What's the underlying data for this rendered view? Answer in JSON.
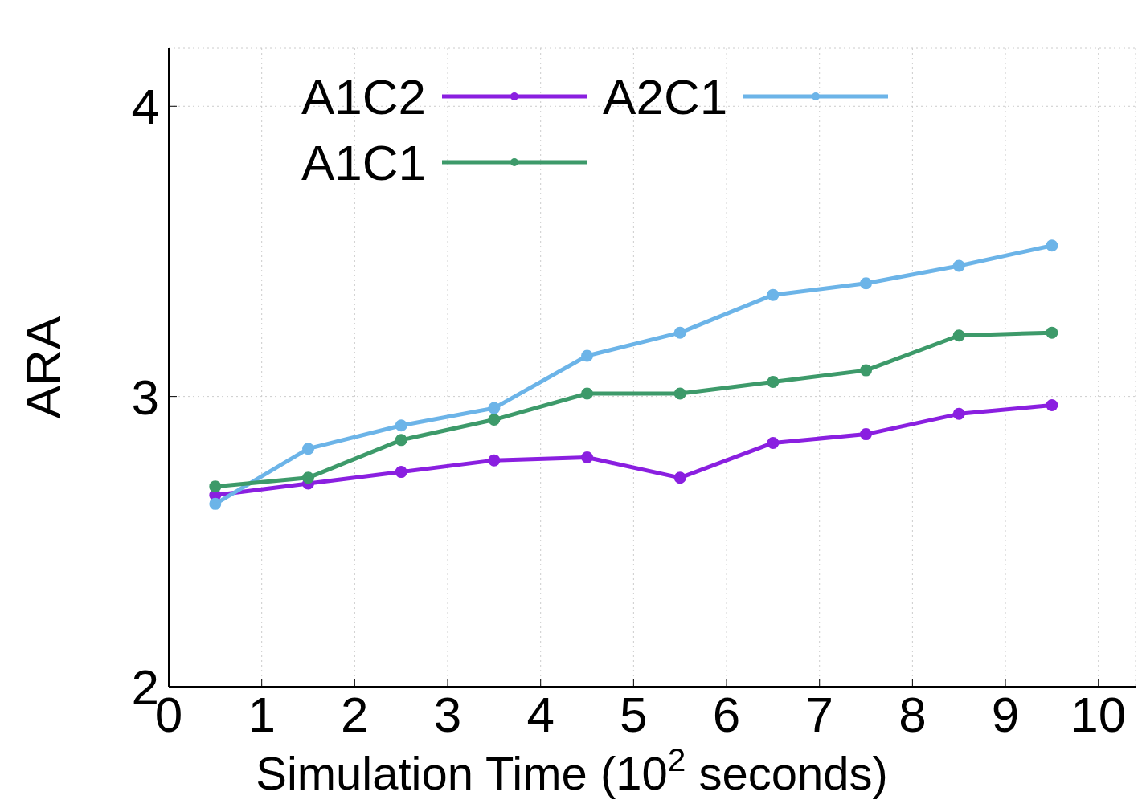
{
  "chart_data": {
    "type": "line",
    "xlabel": "Simulation Time (10$^{2}$ seconds)",
    "ylabel": "ARA",
    "x": [
      0.5,
      1.5,
      2.5,
      3.5,
      4.5,
      5.5,
      6.5,
      7.5,
      8.5,
      9.5
    ],
    "series": [
      {
        "name": "A1C2",
        "color": "#8a1fe0",
        "values": [
          2.66,
          2.7,
          2.74,
          2.78,
          2.79,
          2.72,
          2.84,
          2.87,
          2.94,
          2.97
        ]
      },
      {
        "name": "A2C1",
        "color": "#6cb4e8",
        "values": [
          2.63,
          2.82,
          2.9,
          2.96,
          3.14,
          3.22,
          3.35,
          3.39,
          3.45,
          3.52
        ]
      },
      {
        "name": "A1C1",
        "color": "#3d9a6a",
        "values": [
          2.69,
          2.72,
          2.85,
          2.92,
          3.01,
          3.01,
          3.05,
          3.09,
          3.21,
          3.22
        ]
      }
    ],
    "xlim": [
      0,
      10.4
    ],
    "xticks": [
      0,
      1,
      2,
      3,
      4,
      5,
      6,
      7,
      8,
      9,
      10
    ],
    "ylim": [
      2,
      4.2
    ],
    "yticks": [
      2,
      3,
      4
    ],
    "grid": true,
    "legend": "top left",
    "marker": "circle",
    "line_style": "solid"
  }
}
